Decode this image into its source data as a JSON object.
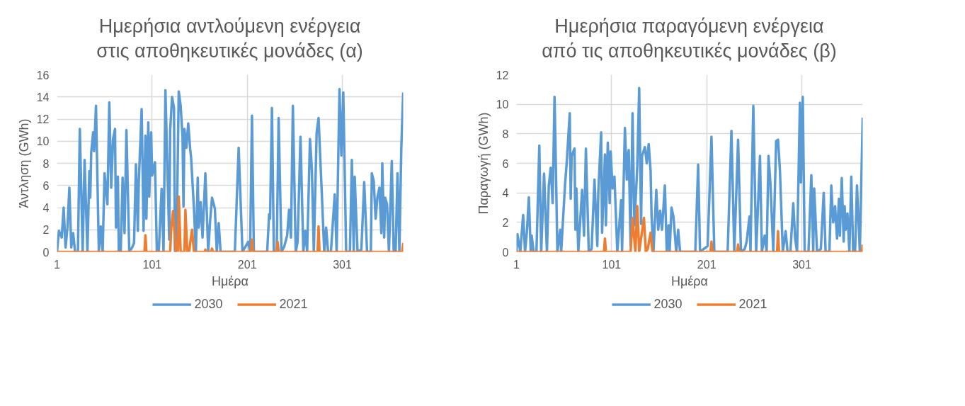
{
  "chart_data": [
    {
      "type": "line",
      "title": "Ημερήσια αντλούμενη ενέργεια\nστις αποθηκευτικές μονάδες (α)",
      "xlabel": "Ημέρα",
      "ylabel": "Άντληση (GWh)",
      "xlim": [
        1,
        365
      ],
      "xticks": [
        1,
        101,
        201,
        301
      ],
      "ylim": [
        0,
        16
      ],
      "yticks": [
        0,
        2,
        4,
        6,
        8,
        10,
        12,
        14,
        16
      ],
      "grid": true,
      "legend": "bottom",
      "series": [
        {
          "name": "2030",
          "color": "#5b9bd5",
          "x": [
            1,
            3,
            6,
            8,
            10,
            12,
            14,
            16,
            18,
            20,
            23,
            25,
            28,
            30,
            33,
            35,
            36,
            37,
            39,
            40,
            42,
            45,
            47,
            49,
            51,
            54,
            56,
            58,
            60,
            62,
            63,
            65,
            66,
            68,
            70,
            72,
            74,
            77,
            80,
            82,
            84,
            86,
            87,
            90,
            92,
            94,
            95,
            97,
            98,
            100,
            101,
            104,
            106,
            108,
            111,
            113,
            115,
            117,
            119,
            120,
            122,
            124,
            125,
            127,
            129,
            131,
            133,
            134,
            135,
            137,
            139,
            141,
            142,
            145,
            147,
            149,
            150,
            152,
            154,
            157,
            160,
            162,
            164,
            167,
            169,
            171,
            173,
            188,
            192,
            196,
            202,
            204,
            206,
            208,
            222,
            224,
            225,
            227,
            229,
            232,
            234,
            237,
            240,
            243,
            245,
            247,
            249,
            252,
            254,
            257,
            260,
            262,
            264,
            267,
            269,
            271,
            274,
            276,
            279,
            282,
            284,
            286,
            289,
            293,
            295,
            298,
            300,
            302,
            305,
            309,
            311,
            313,
            314,
            317,
            321,
            324,
            327,
            331,
            332,
            334,
            336,
            338,
            340,
            342,
            343,
            345,
            346,
            348,
            350,
            353,
            355,
            357,
            359,
            361,
            363,
            365
          ],
          "values": [
            0,
            1.9,
            1.3,
            4.0,
            0.4,
            2.2,
            5.8,
            0.4,
            1.7,
            0,
            0,
            11.1,
            0,
            8.3,
            0,
            7.3,
            4.9,
            9.0,
            10.8,
            9.1,
            13.2,
            0,
            2.3,
            0,
            7.1,
            4.3,
            13.5,
            5.8,
            10.2,
            11.1,
            2.2,
            6.8,
            0,
            0,
            6.7,
            1.7,
            11.0,
            0,
            0.4,
            0.8,
            7.9,
            1.9,
            6.3,
            12.9,
            1.9,
            10.5,
            3.0,
            11.7,
            5.0,
            10.8,
            6.9,
            8.1,
            0,
            0,
            5.7,
            0,
            14.6,
            7.8,
            1.1,
            11.0,
            14.0,
            13.0,
            0,
            2.5,
            14.5,
            13.2,
            10.4,
            4.1,
            11.1,
            9.4,
            11.6,
            9.3,
            8.5,
            3.9,
            0,
            6.7,
            2.2,
            4.5,
            1.3,
            7.1,
            0,
            2.8,
            4.9,
            3.9,
            0,
            2.6,
            0,
            0,
            9.4,
            0,
            0.9,
            0,
            12.3,
            0,
            0,
            3.4,
            3.0,
            13.0,
            0,
            0,
            12.1,
            0,
            0.5,
            1.5,
            3.8,
            1.3,
            13.2,
            0,
            0.9,
            10.4,
            0,
            1.9,
            0,
            10.2,
            7.4,
            0,
            10.8,
            12.1,
            6.1,
            0,
            2.2,
            0,
            0,
            5.2,
            0,
            14.7,
            8.7,
            14.4,
            0,
            0,
            8.3,
            0,
            6.8,
            0,
            0.2,
            6.3,
            0,
            0,
            7.1,
            6.4,
            3.0,
            5.0,
            5.8,
            1.7,
            8.0,
            1.3,
            4.9,
            4.3,
            0,
            8.2,
            0,
            0,
            7.1,
            0,
            9.4,
            14.4
          ]
        },
        {
          "name": "2021",
          "color": "#ed7d31",
          "x": [
            1,
            93,
            94,
            95,
            120,
            121,
            123,
            126,
            128,
            129,
            131,
            135,
            136,
            138,
            140,
            141,
            143,
            145,
            156,
            157,
            158,
            163,
            164,
            165,
            205,
            206,
            207,
            232,
            233,
            234,
            275,
            276,
            277,
            364,
            365
          ],
          "values": [
            0,
            0,
            1.5,
            0,
            0,
            2.0,
            3.7,
            0,
            0,
            5.0,
            0,
            0,
            3.8,
            0,
            0,
            0.8,
            2.0,
            0,
            0,
            0.2,
            0,
            0,
            0.3,
            0,
            0,
            1.1,
            0,
            0,
            0.9,
            0,
            0,
            2.3,
            0,
            0,
            0.8
          ]
        }
      ]
    },
    {
      "type": "line",
      "title": "Ημερήσια παραγόμενη ενέργεια\nαπό τις αποθηκευτικές μονάδες (β)",
      "xlabel": "Ημέρα",
      "ylabel": "Παραγωγή (GWh)",
      "xlim": [
        1,
        365
      ],
      "xticks": [
        1,
        101,
        201,
        301
      ],
      "ylim": [
        0,
        12
      ],
      "yticks": [
        0,
        2,
        4,
        6,
        8,
        10,
        12
      ],
      "grid": true,
      "legend": "bottom",
      "series": [
        {
          "name": "2030",
          "color": "#5b9bd5",
          "x": [
            1,
            2,
            5,
            8,
            10,
            12,
            14,
            16,
            17,
            19,
            22,
            25,
            27,
            30,
            33,
            35,
            37,
            39,
            41,
            42,
            44,
            47,
            48,
            52,
            54,
            57,
            58,
            59,
            62,
            63,
            64,
            66,
            70,
            72,
            74,
            77,
            80,
            83,
            86,
            87,
            90,
            91,
            94,
            95,
            97,
            99,
            100,
            102,
            104,
            107,
            111,
            112,
            115,
            117,
            118,
            119,
            121,
            123,
            125,
            128,
            130,
            132,
            133,
            136,
            138,
            140,
            142,
            143,
            145,
            148,
            150,
            152,
            154,
            157,
            159,
            161,
            162,
            164,
            166,
            169,
            171,
            173,
            189,
            192,
            194,
            202,
            206,
            209,
            223,
            224,
            227,
            230,
            234,
            237,
            241,
            243,
            246,
            247,
            250,
            253,
            257,
            259,
            262,
            264,
            266,
            268,
            271,
            274,
            276,
            278,
            281,
            284,
            286,
            289,
            292,
            294,
            296,
            299,
            300,
            302,
            304,
            308,
            311,
            313,
            314,
            317,
            321,
            324,
            326,
            330,
            332,
            334,
            336,
            338,
            340,
            341,
            343,
            345,
            346,
            347,
            349,
            351,
            353,
            355,
            357,
            359,
            362,
            365
          ],
          "values": [
            0,
            1.2,
            0,
            2.5,
            0,
            1.4,
            3.7,
            0,
            1.1,
            0,
            0,
            7.2,
            0,
            5.3,
            0,
            4.5,
            5.7,
            3.3,
            10.5,
            7.3,
            0,
            1.5,
            0,
            4.5,
            6.2,
            9.4,
            3.6,
            6.5,
            7.0,
            1.5,
            4.3,
            0,
            4.2,
            1.1,
            7.0,
            0,
            0.2,
            4.9,
            0.4,
            4.0,
            8.1,
            1.3,
            6.6,
            1.8,
            7.4,
            3.3,
            6.8,
            4.3,
            5.1,
            0,
            3.5,
            0,
            8.4,
            4.9,
            6.4,
            6.9,
            0.4,
            9.4,
            1.8,
            5.8,
            11.1,
            1.9,
            6.5,
            7.1,
            6.0,
            7.3,
            5.5,
            2.5,
            0,
            4.2,
            1.5,
            2.8,
            1.5,
            4.5,
            0,
            1.8,
            0,
            3.0,
            2.4,
            0,
            1.5,
            0,
            0,
            5.9,
            0,
            0.4,
            7.8,
            0,
            0,
            2.0,
            8.2,
            0,
            7.6,
            0,
            0.2,
            0.7,
            2.4,
            0,
            9.9,
            0,
            6.5,
            0,
            1.1,
            0,
            6.5,
            4.6,
            0,
            7.5,
            7.6,
            5.5,
            0,
            1.4,
            0,
            0,
            3.3,
            0.9,
            0,
            10.1,
            4.7,
            10.5,
            0,
            0,
            5.2,
            0,
            4.3,
            0,
            0.2,
            4.0,
            0,
            0,
            4.5,
            2.0,
            3.1,
            0.9,
            3.6,
            1.1,
            5.0,
            0.7,
            3.1,
            1.5,
            2.6,
            0,
            5.1,
            0,
            0,
            4.5,
            0,
            9.1
          ]
        },
        {
          "name": "2021",
          "color": "#ed7d31",
          "x": [
            1,
            93,
            94,
            95,
            121,
            123,
            126,
            128,
            130,
            135,
            137,
            139,
            142,
            144,
            205,
            206,
            207,
            233,
            234,
            235,
            275,
            276,
            277,
            364,
            365
          ],
          "values": [
            0,
            0,
            0.9,
            0,
            0,
            2.3,
            0,
            3.1,
            0,
            2.3,
            0,
            0.2,
            1.3,
            0,
            0,
            0.7,
            0,
            0,
            0.5,
            0,
            0,
            1.4,
            0,
            0,
            0.5
          ]
        }
      ]
    }
  ]
}
